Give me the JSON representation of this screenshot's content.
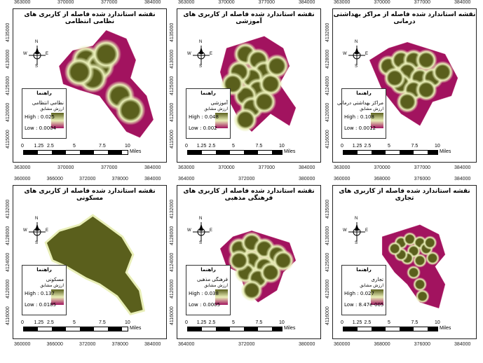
{
  "panels": [
    {
      "id": "military",
      "title": "نقشه استاندارد شده فاصله از کاربری های نظامی انتظامی",
      "top_ticks": [
        "363000",
        "370000",
        "377000",
        "384000"
      ],
      "bottom_ticks": [
        "363000",
        "370000",
        "377000",
        "384000"
      ],
      "left_ticks": [
        "4135000",
        "4130000",
        "4125000",
        "4120000",
        "4115000"
      ],
      "legend_title": "راهنما",
      "legend_layer": "نظامی انتظامی",
      "legend_sub": "ارزش مشابق",
      "high": "High : 0.025",
      "low": "Low : 0.0004",
      "scale_labels": [
        "0",
        "1.25",
        "2.5",
        "5",
        "7.5",
        "10"
      ],
      "scale_unit": "Miles"
    },
    {
      "id": "education",
      "title": "نقشه استاندارد شده فاصله از کاربری های آموزشی",
      "top_ticks": [
        "363000",
        "370000",
        "377000",
        "384000"
      ],
      "bottom_ticks": [
        "363000",
        "370000",
        "377000",
        "384000"
      ],
      "left_ticks": [
        "4135000",
        "4130000",
        "4125000",
        "4120000",
        "4115000"
      ],
      "legend_title": "راهنما",
      "legend_layer": "آموزشی",
      "legend_sub": "ارزش مشابق",
      "high": "High : 0.048",
      "low": "Low : 0.002",
      "scale_labels": [
        "0",
        "1.25",
        "2.5",
        "5",
        "7.5",
        "10"
      ],
      "scale_unit": "Miles"
    },
    {
      "id": "health",
      "title": "نقشه استاندارد شده فاصله از مراکز بهداشتی درمانی",
      "top_ticks": [
        "363000",
        "370000",
        "377000",
        "384000"
      ],
      "bottom_ticks": [
        "363000",
        "370000",
        "377000",
        "384000"
      ],
      "left_ticks": [
        "4132000",
        "4128000",
        "4124000",
        "4120000",
        "4116000"
      ],
      "legend_title": "راهنما",
      "legend_layer": "مراکز بهداشتی درمانی",
      "legend_sub": "ارزش مشابق",
      "high": "High : 0.108",
      "low": "Low : 0.0012",
      "scale_labels": [
        "0",
        "1.25",
        "2.5",
        "5",
        "7.5",
        "10"
      ],
      "scale_unit": "Miles"
    },
    {
      "id": "residential",
      "title": "نقشه استاندارد شده فاصله از کاربری های مسکونی",
      "top_ticks": [
        "360000",
        "366000",
        "372000",
        "378000",
        "384000"
      ],
      "bottom_ticks": [
        "360000",
        "366000",
        "372000",
        "378000",
        "384000"
      ],
      "left_ticks": [
        "4132000",
        "4128000",
        "4124000",
        "4120000",
        "4116000"
      ],
      "legend_title": "راهنما",
      "legend_layer": "مسکونی",
      "legend_sub": "ارزش مشابق",
      "high": "High : 0.137",
      "low": "Low : 0.0185",
      "scale_labels": [
        "0",
        "1.25",
        "2.5",
        "5",
        "7.5",
        "10"
      ],
      "scale_unit": "Miles"
    },
    {
      "id": "cultural",
      "title": "نقشه استاندارد شده فاصله از کاربری های فرهنگی مذهبی",
      "top_ticks": [
        "364000",
        "372000",
        "380000"
      ],
      "bottom_ticks": [
        "364000",
        "372000",
        "380000"
      ],
      "left_ticks": [
        "4132000",
        "4128000",
        "4124000",
        "4120000",
        "4116000"
      ],
      "legend_title": "راهنما",
      "legend_layer": "فرهنگی مذهبی",
      "legend_sub": "ارزش مشابق",
      "high": "High : 0.038",
      "low": "Low : 0.0005",
      "scale_labels": [
        "0",
        "1.25",
        "2.5",
        "5",
        "7.5",
        "10"
      ],
      "scale_unit": "Miles"
    },
    {
      "id": "commercial",
      "title": "نقشه استاندارد شده فاصله از کاربری های تجاری",
      "top_ticks": [
        "360000",
        "368000",
        "376000",
        "384000"
      ],
      "bottom_ticks": [
        "360000",
        "368000",
        "376000",
        "384000"
      ],
      "left_ticks": [
        "4135000",
        "4130000",
        "4125000",
        "4120000",
        "4116000"
      ],
      "legend_title": "راهنما",
      "legend_layer": "تجاری",
      "legend_sub": "ارزش مشابق",
      "high": "High : 0.027",
      "low": "Low : 8.47e-005",
      "scale_labels": [
        "0",
        "1.25",
        "2.5",
        "5",
        "7.5",
        "10"
      ],
      "scale_unit": "Miles"
    }
  ],
  "north_labels": {
    "n": "N",
    "s": "S",
    "e": "E",
    "w": "W"
  },
  "colors": {
    "low": "#a2135f",
    "mid": "#e9efb8",
    "high": "#5a5f1c"
  }
}
